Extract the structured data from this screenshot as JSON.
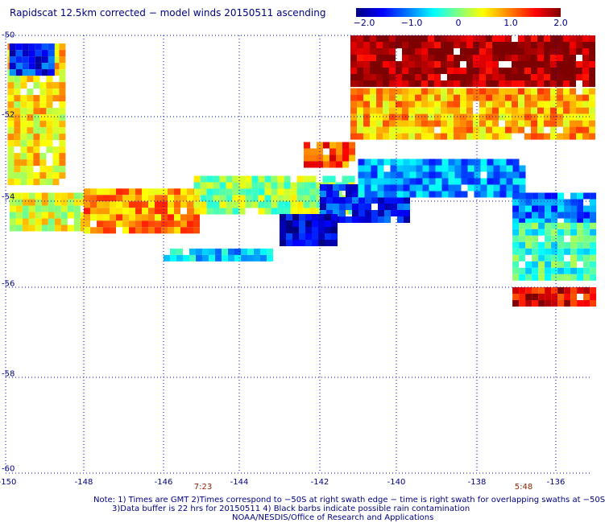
{
  "title": "Rapidscat 12.5km corrected − model winds 20150511 ascending",
  "colorbar": {
    "labels": [
      "−2.0",
      "−1.0",
      "0",
      "1.0",
      "2.0"
    ],
    "range": [
      -2.0,
      2.0
    ]
  },
  "axes": {
    "x_ticks": [
      "-150",
      "-148",
      "-146",
      "-144",
      "-142",
      "-140",
      "-138",
      "-136"
    ],
    "y_ticks": [
      "-50",
      "-52",
      "-54",
      "-56",
      "-58",
      "-60"
    ],
    "x_range": [
      -150,
      -135
    ],
    "y_range": [
      -60,
      -50
    ],
    "grid": "dotted"
  },
  "times": [
    "7:23",
    "5:48"
  ],
  "notes": {
    "line1": "Note: 1) Times are GMT 2)Times correspond to −50S at right swath edge − time is right swath for overlapping swaths at −50S",
    "line2": "3)Data buffer is 22 hrs for 20150511 4) Black barbs indicate possible rain contamination",
    "line3": "NOAA/NESDIS/Office of Research and Applications"
  },
  "swath_regions": [
    {
      "lon": [
        -149.95,
        -148.6
      ],
      "lat": [
        -53.5,
        -50.2
      ],
      "value": 0.6
    },
    {
      "lon": [
        -149.9,
        -148.8
      ],
      "lat": [
        -50.9,
        -50.2
      ],
      "value": -1.4
    },
    {
      "lon": [
        -149.9,
        -148.0
      ],
      "lat": [
        -54.6,
        -53.8
      ],
      "value": 0.4
    },
    {
      "lon": [
        -148.0,
        -145.2
      ],
      "lat": [
        -54.7,
        -53.7
      ],
      "value": 0.9
    },
    {
      "lon": [
        -145.2,
        -141.2
      ],
      "lat": [
        -54.2,
        -53.4
      ],
      "value": 0.1
    },
    {
      "lon": [
        -142.4,
        -141.2
      ],
      "lat": [
        -53.2,
        -52.6
      ],
      "value": 1.2
    },
    {
      "lon": [
        -142.0,
        -139.8
      ],
      "lat": [
        -54.4,
        -53.6
      ],
      "value": -1.4
    },
    {
      "lon": [
        -146.0,
        -143.2
      ],
      "lat": [
        -55.3,
        -55.1
      ],
      "value": -0.7
    },
    {
      "lon": [
        -143.0,
        -141.6
      ],
      "lat": [
        -54.9,
        -54.3
      ],
      "value": -1.7
    },
    {
      "lon": [
        -141.0,
        -136.8
      ],
      "lat": [
        -53.8,
        -53.0
      ],
      "value": -0.9
    },
    {
      "lon": [
        -141.2,
        -135.1
      ],
      "lat": [
        -52.5,
        -51.3
      ],
      "value": 0.8
    },
    {
      "lon": [
        -141.2,
        -135.1
      ],
      "lat": [
        -51.2,
        -50.0
      ],
      "value": 1.9
    },
    {
      "lon": [
        -137.1,
        -135.1
      ],
      "lat": [
        -54.5,
        -53.8
      ],
      "value": -1.0
    },
    {
      "lon": [
        -137.1,
        -135.1
      ],
      "lat": [
        -55.7,
        -54.5
      ],
      "value": -0.3
    },
    {
      "lon": [
        -137.1,
        -135.1
      ],
      "lat": [
        -56.3,
        -56.0
      ],
      "value": 1.6
    }
  ]
}
